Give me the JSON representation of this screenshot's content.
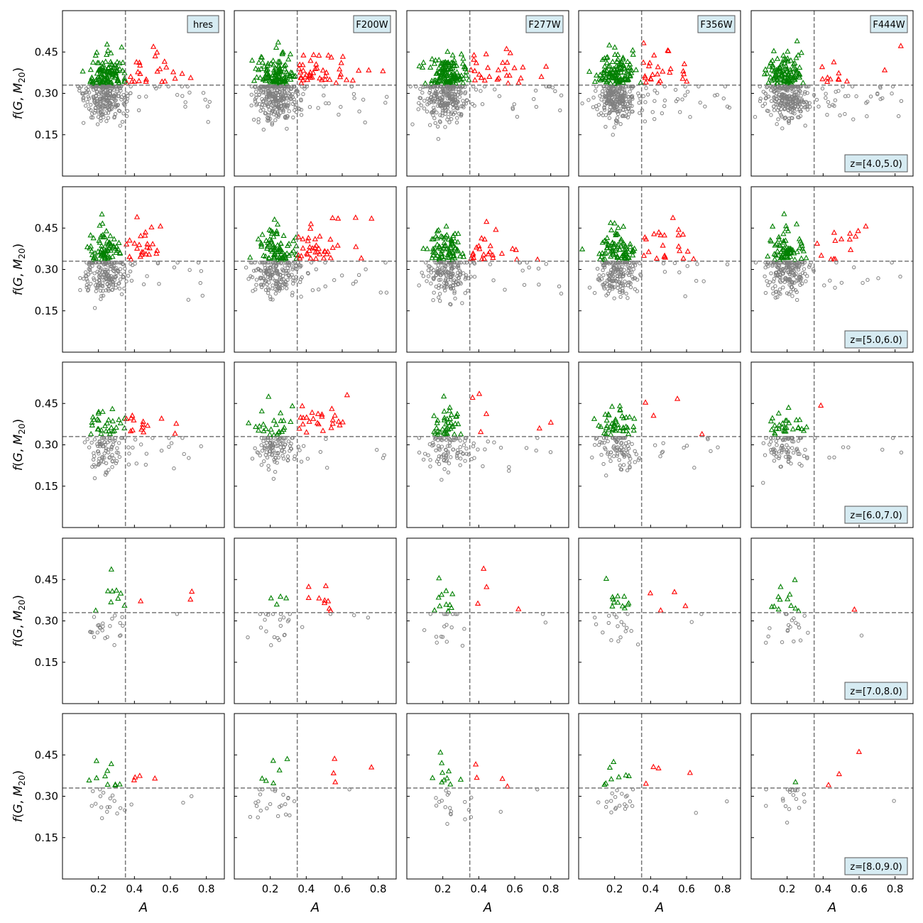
{
  "figure": {
    "ylabel": "f(G, M_{20})",
    "xlabel": "A",
    "filters": [
      "hres",
      "F200W",
      "F277W",
      "F356W",
      "F444W"
    ],
    "redshift_bins": [
      "z=[4.0,5.0)",
      "z=[5.0,6.0)",
      "z=[6.0,7.0)",
      "z=[7.0,8.0)",
      "z=[8.0,9.0)"
    ]
  },
  "colors": {
    "merger": "#ff0000",
    "disturbed": "#008000",
    "normal": "#808080",
    "threshold_line": "#777777",
    "label_box_fill": "#d6ebf2"
  },
  "chart_data": {
    "type": "scatter",
    "layout": "5x5 grid of panels, rows = redshift bins, columns = filters",
    "x_ticks": [
      0.2,
      0.4,
      0.6,
      0.8
    ],
    "y_ticks": [
      0.15,
      0.3,
      0.45
    ],
    "xlim": [
      0.0,
      0.9
    ],
    "ylim": [
      0.0,
      0.6
    ],
    "threshold_lines": {
      "A": 0.35,
      "fGM20": 0.33
    },
    "series_markers": {
      "merger": "open red triangle (A>0.35, f>0.33)",
      "disturbed": "open green triangle (A<0.35, f>0.33)",
      "normal": "open grey circle (f<0.33)"
    },
    "panels": [
      {
        "row": 0,
        "col": 0,
        "n_normal": 280,
        "n_disturbed": 120,
        "n_merger": 25
      },
      {
        "row": 0,
        "col": 1,
        "n_normal": 300,
        "n_disturbed": 110,
        "n_merger": 45
      },
      {
        "row": 0,
        "col": 2,
        "n_normal": 280,
        "n_disturbed": 130,
        "n_merger": 30
      },
      {
        "row": 0,
        "col": 3,
        "n_normal": 280,
        "n_disturbed": 120,
        "n_merger": 25
      },
      {
        "row": 0,
        "col": 4,
        "n_normal": 300,
        "n_disturbed": 110,
        "n_merger": 12
      },
      {
        "row": 1,
        "col": 0,
        "n_normal": 200,
        "n_disturbed": 70,
        "n_merger": 25
      },
      {
        "row": 1,
        "col": 1,
        "n_normal": 200,
        "n_disturbed": 80,
        "n_merger": 40
      },
      {
        "row": 1,
        "col": 2,
        "n_normal": 180,
        "n_disturbed": 80,
        "n_merger": 25
      },
      {
        "row": 1,
        "col": 3,
        "n_normal": 180,
        "n_disturbed": 80,
        "n_merger": 22
      },
      {
        "row": 1,
        "col": 4,
        "n_normal": 190,
        "n_disturbed": 70,
        "n_merger": 14
      },
      {
        "row": 2,
        "col": 0,
        "n_normal": 100,
        "n_disturbed": 30,
        "n_merger": 15
      },
      {
        "row": 2,
        "col": 1,
        "n_normal": 110,
        "n_disturbed": 25,
        "n_merger": 25
      },
      {
        "row": 2,
        "col": 2,
        "n_normal": 100,
        "n_disturbed": 40,
        "n_merger": 6
      },
      {
        "row": 2,
        "col": 3,
        "n_normal": 100,
        "n_disturbed": 45,
        "n_merger": 4
      },
      {
        "row": 2,
        "col": 4,
        "n_normal": 90,
        "n_disturbed": 30,
        "n_merger": 1
      },
      {
        "row": 3,
        "col": 0,
        "n_normal": 25,
        "n_disturbed": 9,
        "n_merger": 3
      },
      {
        "row": 3,
        "col": 1,
        "n_normal": 25,
        "n_disturbed": 4,
        "n_merger": 9
      },
      {
        "row": 3,
        "col": 2,
        "n_normal": 20,
        "n_disturbed": 12,
        "n_merger": 4
      },
      {
        "row": 3,
        "col": 3,
        "n_normal": 20,
        "n_disturbed": 12,
        "n_merger": 4
      },
      {
        "row": 3,
        "col": 4,
        "n_normal": 20,
        "n_disturbed": 12,
        "n_merger": 1
      },
      {
        "row": 4,
        "col": 0,
        "n_normal": 20,
        "n_disturbed": 10,
        "n_merger": 4
      },
      {
        "row": 4,
        "col": 1,
        "n_normal": 25,
        "n_disturbed": 6,
        "n_merger": 4
      },
      {
        "row": 4,
        "col": 2,
        "n_normal": 20,
        "n_disturbed": 10,
        "n_merger": 4
      },
      {
        "row": 4,
        "col": 3,
        "n_normal": 22,
        "n_disturbed": 8,
        "n_merger": 4
      },
      {
        "row": 4,
        "col": 4,
        "n_normal": 20,
        "n_disturbed": 1,
        "n_merger": 3
      }
    ]
  }
}
